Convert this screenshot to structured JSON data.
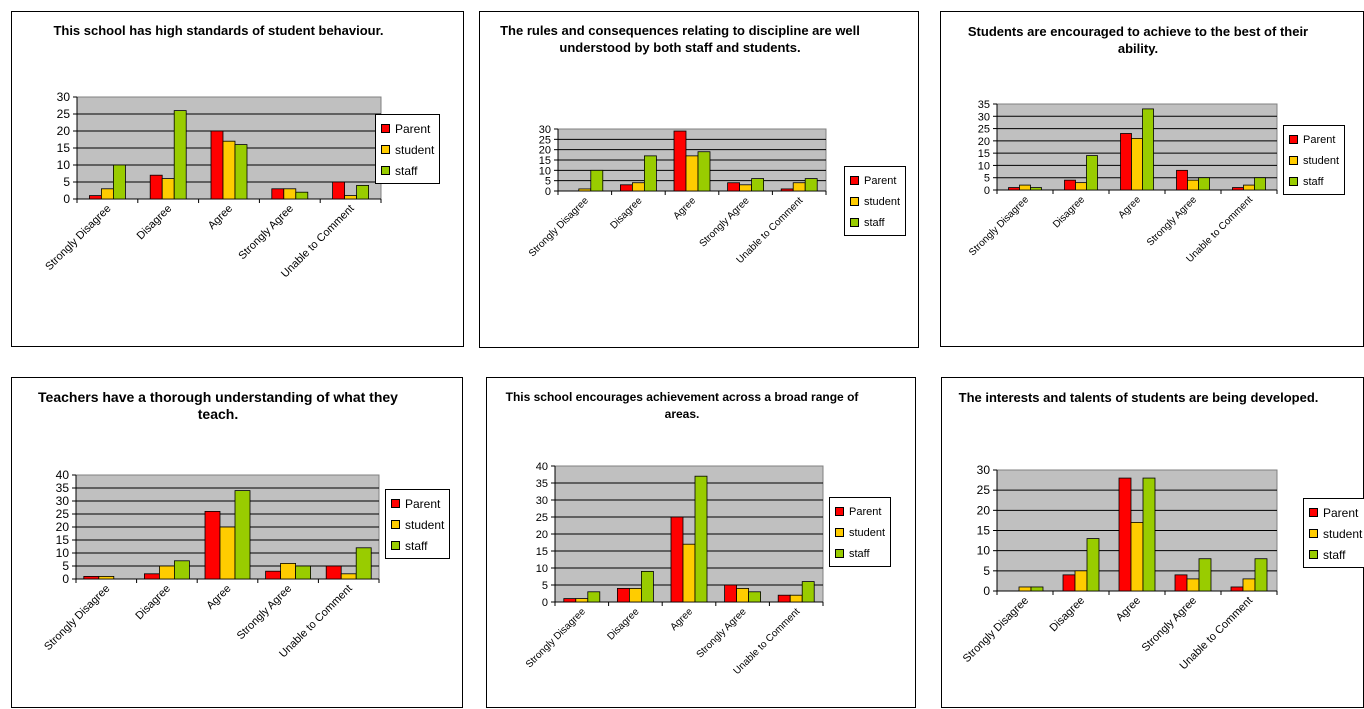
{
  "series_names": [
    "Parent",
    "student",
    "staff"
  ],
  "series_colors": [
    "#ff0000",
    "#ffcc00",
    "#99cc00"
  ],
  "plot_area_color": "#c0c0c0",
  "chart_data": [
    {
      "type": "bar",
      "title": "This school has high standards of student behaviour.",
      "categories": [
        "Strongly Disagree",
        "Disagree",
        "Agree",
        "Strongly Agree",
        "Unable to Comment"
      ],
      "series": [
        {
          "name": "Parent",
          "values": [
            1,
            7,
            20,
            3,
            5
          ]
        },
        {
          "name": "student",
          "values": [
            3,
            6,
            17,
            3,
            1
          ]
        },
        {
          "name": "staff",
          "values": [
            10,
            26,
            16,
            2,
            4
          ]
        }
      ],
      "ylim": [
        0,
        30
      ],
      "yticks": [
        0,
        5,
        10,
        15,
        20,
        25,
        30
      ],
      "grid": true,
      "legend": "right"
    },
    {
      "type": "bar",
      "title": "The rules and consequences relating to discipline are well understood by both staff and students.",
      "categories": [
        "Strongly Disagree",
        "Disagree",
        "Agree",
        "Strongly Agree",
        "Unable to Comment"
      ],
      "series": [
        {
          "name": "Parent",
          "values": [
            0,
            3,
            29,
            4,
            1
          ]
        },
        {
          "name": "student",
          "values": [
            1,
            4,
            17,
            3,
            4
          ]
        },
        {
          "name": "staff",
          "values": [
            10,
            17,
            19,
            6,
            6
          ]
        }
      ],
      "ylim": [
        0,
        30
      ],
      "yticks": [
        0,
        5,
        10,
        15,
        20,
        25,
        30
      ],
      "grid": true,
      "legend": "right"
    },
    {
      "type": "bar",
      "title": "Students are encouraged to achieve to the best of their ability.",
      "categories": [
        "Strongly Disagree",
        "Disagree",
        "Agree",
        "Strongly Agree",
        "Unable to Comment"
      ],
      "series": [
        {
          "name": "Parent",
          "values": [
            1,
            4,
            23,
            8,
            1
          ]
        },
        {
          "name": "student",
          "values": [
            2,
            3,
            21,
            4,
            2
          ]
        },
        {
          "name": "staff",
          "values": [
            1,
            14,
            33,
            5,
            5
          ]
        }
      ],
      "ylim": [
        0,
        35
      ],
      "yticks": [
        0,
        5,
        10,
        15,
        20,
        25,
        30,
        35
      ],
      "grid": true,
      "legend": "right"
    },
    {
      "type": "bar",
      "title": "Teachers have a thorough understanding of what they teach.",
      "categories": [
        "Strongly Disagree",
        "Disagree",
        "Agree",
        "Strongly Agree",
        "Unable to Comment"
      ],
      "series": [
        {
          "name": "Parent",
          "values": [
            1,
            2,
            26,
            3,
            5
          ]
        },
        {
          "name": "student",
          "values": [
            1,
            5,
            20,
            6,
            2
          ]
        },
        {
          "name": "staff",
          "values": [
            0,
            7,
            34,
            5,
            12
          ]
        }
      ],
      "ylim": [
        0,
        40
      ],
      "yticks": [
        0,
        5,
        10,
        15,
        20,
        25,
        30,
        35,
        40
      ],
      "grid": true,
      "legend": "right"
    },
    {
      "type": "bar",
      "title": "This school encourages achievement across a broad range of areas.",
      "categories": [
        "Strongly Disagree",
        "Disagree",
        "Agree",
        "Strongly Agree",
        "Unable to Comment"
      ],
      "series": [
        {
          "name": "Parent",
          "values": [
            1,
            4,
            25,
            5,
            2
          ]
        },
        {
          "name": "student",
          "values": [
            1,
            4,
            17,
            4,
            2
          ]
        },
        {
          "name": "staff",
          "values": [
            3,
            9,
            37,
            3,
            6
          ]
        }
      ],
      "ylim": [
        0,
        40
      ],
      "yticks": [
        0,
        5,
        10,
        15,
        20,
        25,
        30,
        35,
        40
      ],
      "grid": true,
      "legend": "right"
    },
    {
      "type": "bar",
      "title": "The interests and talents of students are being developed.",
      "categories": [
        "Strongly Disagree",
        "Disagree",
        "Agree",
        "Strongly Agree",
        "Unable to Comment"
      ],
      "series": [
        {
          "name": "Parent",
          "values": [
            0,
            4,
            28,
            4,
            1
          ]
        },
        {
          "name": "student",
          "values": [
            1,
            5,
            17,
            3,
            3
          ]
        },
        {
          "name": "staff",
          "values": [
            1,
            13,
            28,
            8,
            8
          ]
        }
      ],
      "ylim": [
        0,
        30
      ],
      "yticks": [
        0,
        5,
        10,
        15,
        20,
        25,
        30
      ],
      "grid": true,
      "legend": "right"
    }
  ]
}
